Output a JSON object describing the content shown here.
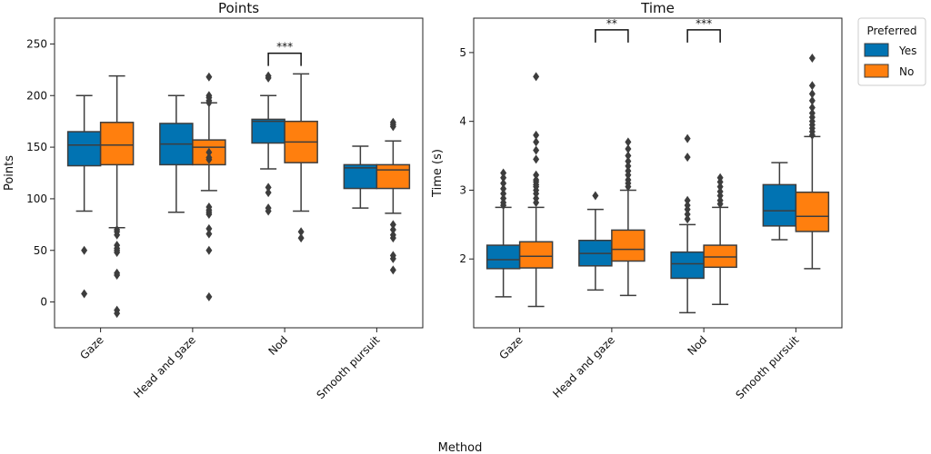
{
  "figure": {
    "xlabel": "Method"
  },
  "legend": {
    "title": "Preferred",
    "items": [
      {
        "label": "Yes",
        "color": "#0173b2"
      },
      {
        "label": "No",
        "color": "#ff7f0e"
      }
    ]
  },
  "chart_data": [
    {
      "type": "box",
      "title": "Points",
      "xlabel": "",
      "ylabel": "Points",
      "ylim": [
        -25,
        275
      ],
      "yticks": [
        0,
        50,
        100,
        150,
        200,
        250
      ],
      "categories": [
        "Gaze",
        "Head and gaze",
        "Nod",
        "Smooth pursuit"
      ],
      "series": [
        {
          "name": "Yes",
          "boxes": [
            {
              "whislo": 88,
              "q1": 132,
              "med": 152,
              "q3": 165,
              "whishi": 200,
              "fliers": [
                50,
                8
              ]
            },
            {
              "whislo": 87,
              "q1": 133,
              "med": 153,
              "q3": 173,
              "whishi": 200,
              "fliers": []
            },
            {
              "whislo": 129,
              "q1": 154,
              "med": 175,
              "q3": 177,
              "whishi": 200,
              "fliers": [
                219,
                217,
                111,
                106,
                91,
                88
              ]
            },
            {
              "whislo": 91,
              "q1": 110,
              "med": 130,
              "q3": 133,
              "whishi": 151,
              "fliers": []
            }
          ]
        },
        {
          "name": "No",
          "boxes": [
            {
              "whislo": 72,
              "q1": 133,
              "med": 152,
              "q3": 174,
              "whishi": 219,
              "fliers": [
                70,
                68,
                65,
                55,
                52,
                50,
                48,
                28,
                26,
                -8,
                -11
              ]
            },
            {
              "whislo": 108,
              "q1": 133,
              "med": 150,
              "q3": 157,
              "whishi": 193,
              "fliers": [
                218,
                200,
                198,
                195,
                193,
                145,
                140,
                138,
                92,
                89,
                87,
                85,
                71,
                66,
                50,
                5
              ]
            },
            {
              "whislo": 88,
              "q1": 135,
              "med": 155,
              "q3": 175,
              "whishi": 221,
              "fliers": [
                68,
                62
              ]
            },
            {
              "whislo": 86,
              "q1": 110,
              "med": 128,
              "q3": 133,
              "whishi": 156,
              "fliers": [
                174,
                172,
                170,
                75,
                70,
                65,
                62,
                45,
                42,
                31
              ]
            }
          ]
        }
      ],
      "significance": [
        {
          "category": "Nod",
          "label": "***",
          "y": 241
        }
      ]
    },
    {
      "type": "box",
      "title": "Time",
      "xlabel": "",
      "ylabel": "Time (s)",
      "ylim": [
        1.0,
        5.5
      ],
      "yticks": [
        2,
        3,
        4,
        5
      ],
      "categories": [
        "Gaze",
        "Head and gaze",
        "Nod",
        "Smooth pursuit"
      ],
      "series": [
        {
          "name": "Yes",
          "boxes": [
            {
              "whislo": 1.45,
              "q1": 1.86,
              "med": 1.99,
              "q3": 2.2,
              "whishi": 2.75,
              "fliers": [
                3.25,
                3.18,
                3.1,
                3.02,
                2.95,
                2.88,
                2.82,
                2.78
              ]
            },
            {
              "whislo": 1.55,
              "q1": 1.9,
              "med": 2.08,
              "q3": 2.27,
              "whishi": 2.72,
              "fliers": [
                2.92
              ]
            },
            {
              "whislo": 1.22,
              "q1": 1.72,
              "med": 1.93,
              "q3": 2.1,
              "whishi": 2.5,
              "fliers": [
                3.75,
                3.48,
                2.85,
                2.78,
                2.72,
                2.65,
                2.58
              ]
            },
            {
              "whislo": 2.28,
              "q1": 2.48,
              "med": 2.7,
              "q3": 3.08,
              "whishi": 3.4,
              "fliers": []
            }
          ]
        },
        {
          "name": "No",
          "boxes": [
            {
              "whislo": 1.31,
              "q1": 1.87,
              "med": 2.04,
              "q3": 2.25,
              "whishi": 2.75,
              "fliers": [
                4.65,
                3.8,
                3.7,
                3.58,
                3.45,
                3.22,
                3.15,
                3.12,
                3.08,
                3.05,
                3.0,
                2.95,
                2.88,
                2.82
              ]
            },
            {
              "whislo": 1.47,
              "q1": 1.97,
              "med": 2.14,
              "q3": 2.42,
              "whishi": 3.0,
              "fliers": [
                3.7,
                3.6,
                3.5,
                3.42,
                3.35,
                3.28,
                3.22,
                3.15,
                3.1,
                3.05
              ]
            },
            {
              "whislo": 1.34,
              "q1": 1.88,
              "med": 2.03,
              "q3": 2.2,
              "whishi": 2.75,
              "fliers": [
                3.18,
                3.12,
                3.05,
                2.98,
                2.92,
                2.85,
                2.8
              ]
            },
            {
              "whislo": 1.86,
              "q1": 2.4,
              "med": 2.62,
              "q3": 2.97,
              "whishi": 3.78,
              "fliers": [
                4.92,
                4.52,
                4.4,
                4.3,
                4.2,
                4.12,
                4.06,
                4.0,
                3.95,
                3.9,
                3.85,
                3.8
              ]
            }
          ]
        }
      ],
      "significance": [
        {
          "category": "Head and gaze",
          "label": "**",
          "y": 5.33
        },
        {
          "category": "Nod",
          "label": "***",
          "y": 5.33
        }
      ]
    }
  ]
}
